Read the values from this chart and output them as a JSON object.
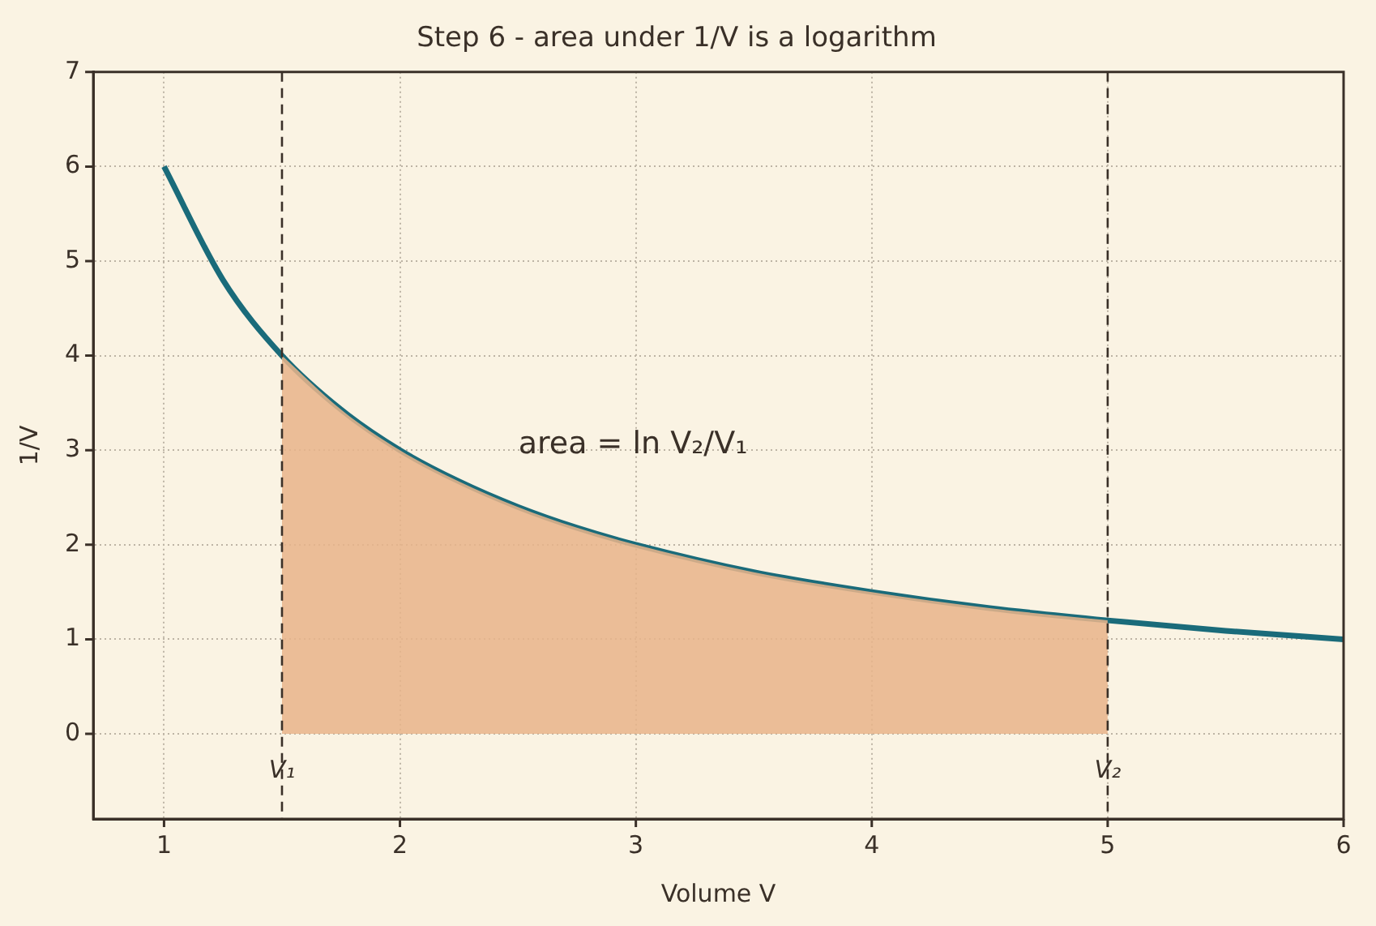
{
  "chart_data": {
    "type": "line",
    "title": "Step 6 - area under 1/V is a logarithm",
    "xlabel": "Volume V",
    "ylabel": "1/V",
    "series": [
      {
        "type": "area",
        "color": "#e8b48a",
        "x": [
          1.5,
          1.75,
          2,
          2.25,
          2.5,
          2.75,
          3,
          3.5,
          4,
          4.5,
          5
        ],
        "values": [
          4,
          3.43,
          3,
          2.67,
          2.4,
          2.18,
          2,
          1.71,
          1.5,
          1.33,
          1.2
        ]
      },
      {
        "color": "#1a6b7a",
        "x": [
          1,
          1.25,
          1.5,
          1.75,
          2,
          2.25,
          2.5,
          2.75,
          3,
          3.5,
          4,
          4.5,
          5,
          5.5,
          6
        ],
        "values": [
          6,
          4.8,
          4,
          3.43,
          3,
          2.67,
          2.4,
          2.18,
          2,
          1.71,
          1.5,
          1.33,
          1.2,
          1.09,
          1
        ]
      }
    ],
    "ref_lines": [
      {
        "axis": "x",
        "value": 1.5,
        "label": "V₁",
        "color": "#3a3028",
        "line_style": "dashed"
      },
      {
        "axis": "x",
        "value": 5,
        "label": "V₂",
        "color": "#3a3028",
        "line_style": "dashed"
      }
    ],
    "annotations": [
      "area = ln V₂/V₁"
    ],
    "xlim": [
      0.7,
      6
    ],
    "xticks": [
      1,
      2,
      3,
      4,
      5,
      6
    ],
    "ylim": [
      -0.9,
      7
    ],
    "yticks": [
      0,
      1,
      2,
      3,
      4,
      5,
      6,
      7
    ],
    "grid": true,
    "legend": false,
    "marker": "none",
    "line_style": "solid"
  }
}
